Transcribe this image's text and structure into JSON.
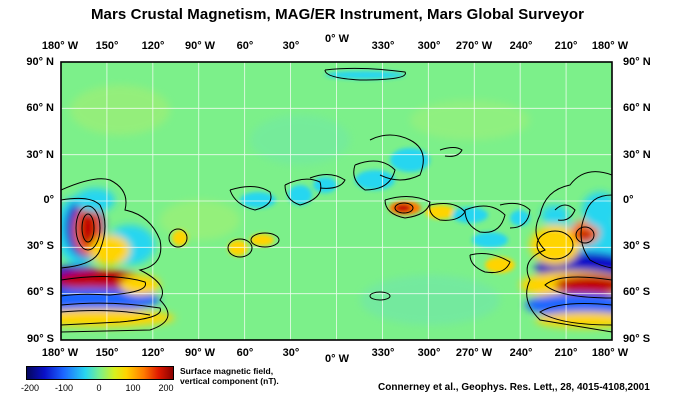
{
  "title": "Mars Crustal Magnetism, MAG/ER Instrument, Mars Global Surveyor",
  "longitude_labels": [
    "180° W",
    "150°",
    "120°",
    "90° W",
    "60°",
    "30°",
    "0° W",
    "330°",
    "300°",
    "270° W",
    "240°",
    "210°",
    "180° W"
  ],
  "latitude_labels": [
    "90° N",
    "60° N",
    "30° N",
    "0°",
    "30° S",
    "60° S",
    "90° S"
  ],
  "colorbar": {
    "ticks": [
      "-200",
      "-100",
      "0",
      "100",
      "200"
    ],
    "label_line1": "Surface magnetic field,",
    "label_line2": "vertical component (nT).",
    "range": [
      -200,
      200
    ]
  },
  "credit": "Connerney et al., Geophys. Res. Lett,, 28, 4015-4108,2001",
  "colors": {
    "background_field": "#7cf08a",
    "positive_strong": "#c00000",
    "negative_strong": "#0a10c8",
    "contour": "#000000"
  }
}
